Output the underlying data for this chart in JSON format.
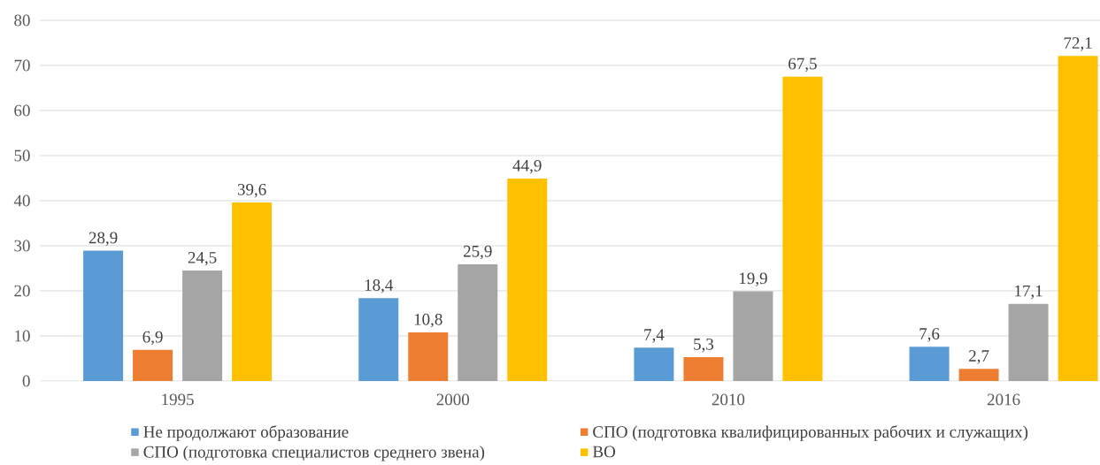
{
  "chart_data": {
    "type": "bar",
    "categories": [
      "1995",
      "2000",
      "2010",
      "2016"
    ],
    "series": [
      {
        "name": "Не продолжают образование",
        "color": "#5b9bd5",
        "values": [
          28.9,
          18.4,
          7.4,
          7.6
        ],
        "value_labels": [
          "28,9",
          "18,4",
          "7,4",
          "7,6"
        ]
      },
      {
        "name": "СПО (подготовка квалифицированных рабочих и служащих)",
        "color": "#ed7d31",
        "values": [
          6.9,
          10.8,
          5.3,
          2.7
        ],
        "value_labels": [
          "6,9",
          "10,8",
          "5,3",
          "2,7"
        ]
      },
      {
        "name": "СПО (подготовка специалистов среднего звена)",
        "color": "#a5a5a5",
        "values": [
          24.5,
          25.9,
          19.9,
          17.1
        ],
        "value_labels": [
          "24,5",
          "25,9",
          "19,9",
          "17,1"
        ]
      },
      {
        "name": "ВО",
        "color": "#ffc000",
        "values": [
          39.6,
          44.9,
          67.5,
          72.1
        ],
        "value_labels": [
          "39,6",
          "44,9",
          "67,5",
          "72,1"
        ]
      }
    ],
    "ylim": [
      0,
      80
    ],
    "yticks": [
      0,
      10,
      20,
      30,
      40,
      50,
      60,
      70,
      80
    ],
    "grid": "y",
    "legend": "bottom"
  }
}
